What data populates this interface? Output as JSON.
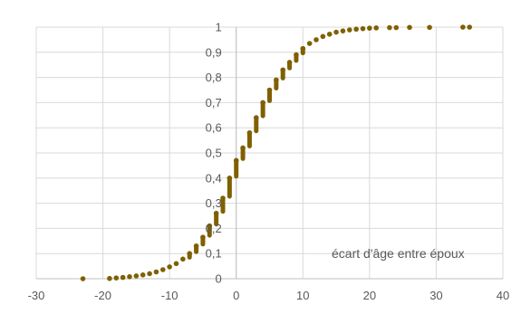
{
  "chart_data": {
    "type": "scatter",
    "title": "",
    "xlabel": "écart d'âge entre époux",
    "ylabel": "",
    "xlim": [
      -30,
      40
    ],
    "ylim": [
      0,
      1
    ],
    "grid": true,
    "x_ticks": [
      "-30",
      "-20",
      "-10",
      "0",
      "10",
      "20",
      "30",
      "40"
    ],
    "y_ticks": [
      "0",
      "0,1",
      "0,2",
      "0,3",
      "0,4",
      "0,5",
      "0,6",
      "0,7",
      "0,8",
      "0,9",
      "1"
    ],
    "marker_color": "#7f6000",
    "series": [
      {
        "x": [
          -23,
          -19,
          -18,
          -17,
          -16,
          -15,
          -14,
          -13,
          -12,
          -11,
          -10,
          -9,
          -8,
          -7,
          -6,
          -5,
          -4,
          -3,
          -2,
          -1,
          0,
          1,
          2,
          3,
          4,
          5,
          6,
          7,
          8,
          9,
          10,
          11,
          12,
          13,
          14,
          15,
          16,
          17,
          18,
          19,
          20,
          21,
          23,
          24,
          26,
          29,
          34,
          35
        ],
        "y": [
          0.0,
          0.001,
          0.003,
          0.005,
          0.008,
          0.011,
          0.015,
          0.02,
          0.027,
          0.036,
          0.047,
          0.06,
          0.078,
          0.1,
          0.13,
          0.165,
          0.21,
          0.26,
          0.32,
          0.4,
          0.47,
          0.52,
          0.58,
          0.64,
          0.7,
          0.75,
          0.79,
          0.83,
          0.86,
          0.89,
          0.915,
          0.935,
          0.95,
          0.963,
          0.972,
          0.98,
          0.985,
          0.989,
          0.992,
          0.994,
          0.996,
          0.997,
          0.998,
          0.998,
          0.999,
          0.999,
          1.0,
          1.0
        ]
      }
    ]
  }
}
